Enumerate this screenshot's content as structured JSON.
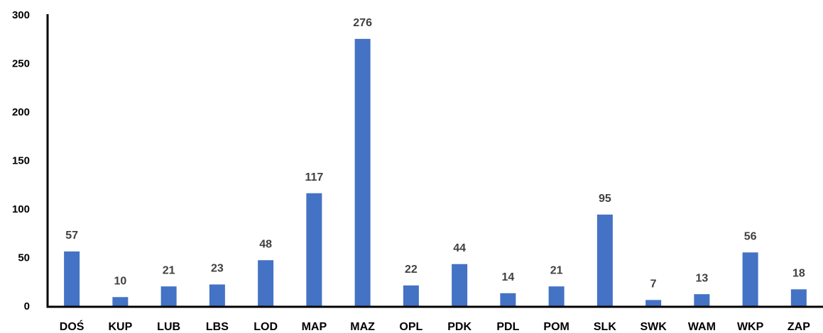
{
  "chart_data": {
    "type": "bar",
    "categories": [
      "DOŚ",
      "KUP",
      "LUB",
      "LBS",
      "LOD",
      "MAP",
      "MAZ",
      "OPL",
      "PDK",
      "PDL",
      "POM",
      "SLK",
      "SWK",
      "WAM",
      "WKP",
      "ZAP"
    ],
    "values": [
      57,
      10,
      21,
      23,
      48,
      117,
      276,
      22,
      44,
      14,
      21,
      95,
      7,
      13,
      56,
      18
    ],
    "color": "#4472c4",
    "ylim": [
      0,
      300
    ],
    "yticks": [
      0,
      50,
      100,
      150,
      200,
      250,
      300
    ],
    "grid": false
  }
}
